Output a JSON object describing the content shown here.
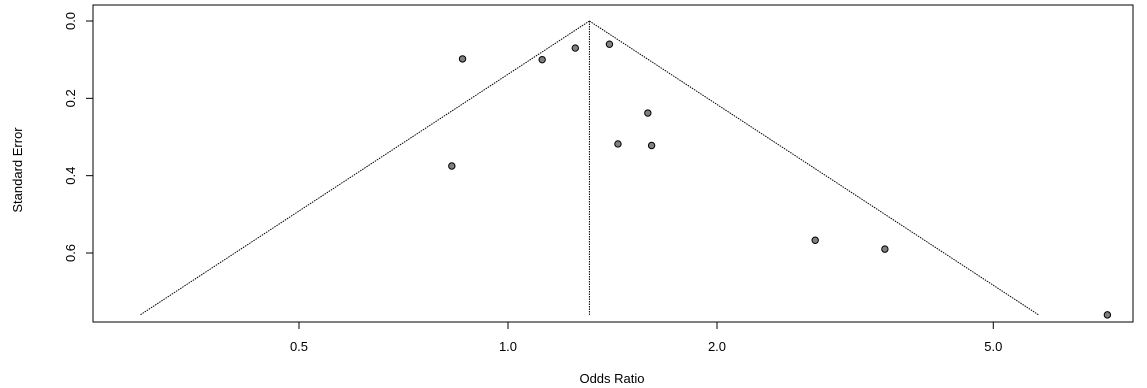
{
  "chart_data": {
    "type": "scatter",
    "subtype": "funnel-plot",
    "title": "",
    "xlabel": "Odds Ratio",
    "ylabel": "Standard Error",
    "x_scale": "log",
    "x_ticks": [
      0.5,
      1.0,
      2.0,
      5.0
    ],
    "x_tick_labels": [
      "0.5",
      "1.0",
      "2.0",
      "5.0"
    ],
    "xlim": [
      0.3,
      7.6
    ],
    "y_reversed": true,
    "y_ticks": [
      0.0,
      0.2,
      0.4,
      0.6
    ],
    "y_tick_labels": [
      "0.0",
      "0.2",
      "0.4",
      "0.6"
    ],
    "ylim": [
      0,
      0.76
    ],
    "grid": false,
    "pooled_estimate": 1.31,
    "funnel_se_max": 0.76,
    "funnel_z": 1.96,
    "points": [
      {
        "x": 0.86,
        "y": 0.098
      },
      {
        "x": 0.83,
        "y": 0.375
      },
      {
        "x": 1.12,
        "y": 0.1
      },
      {
        "x": 1.25,
        "y": 0.07
      },
      {
        "x": 1.4,
        "y": 0.06
      },
      {
        "x": 1.59,
        "y": 0.238
      },
      {
        "x": 1.44,
        "y": 0.318
      },
      {
        "x": 1.61,
        "y": 0.322
      },
      {
        "x": 2.77,
        "y": 0.567
      },
      {
        "x": 3.49,
        "y": 0.59
      },
      {
        "x": 7.3,
        "y": 0.76
      }
    ],
    "colors": {
      "point_fill": "#808080",
      "point_stroke": "#000000",
      "line": "#000000"
    }
  }
}
